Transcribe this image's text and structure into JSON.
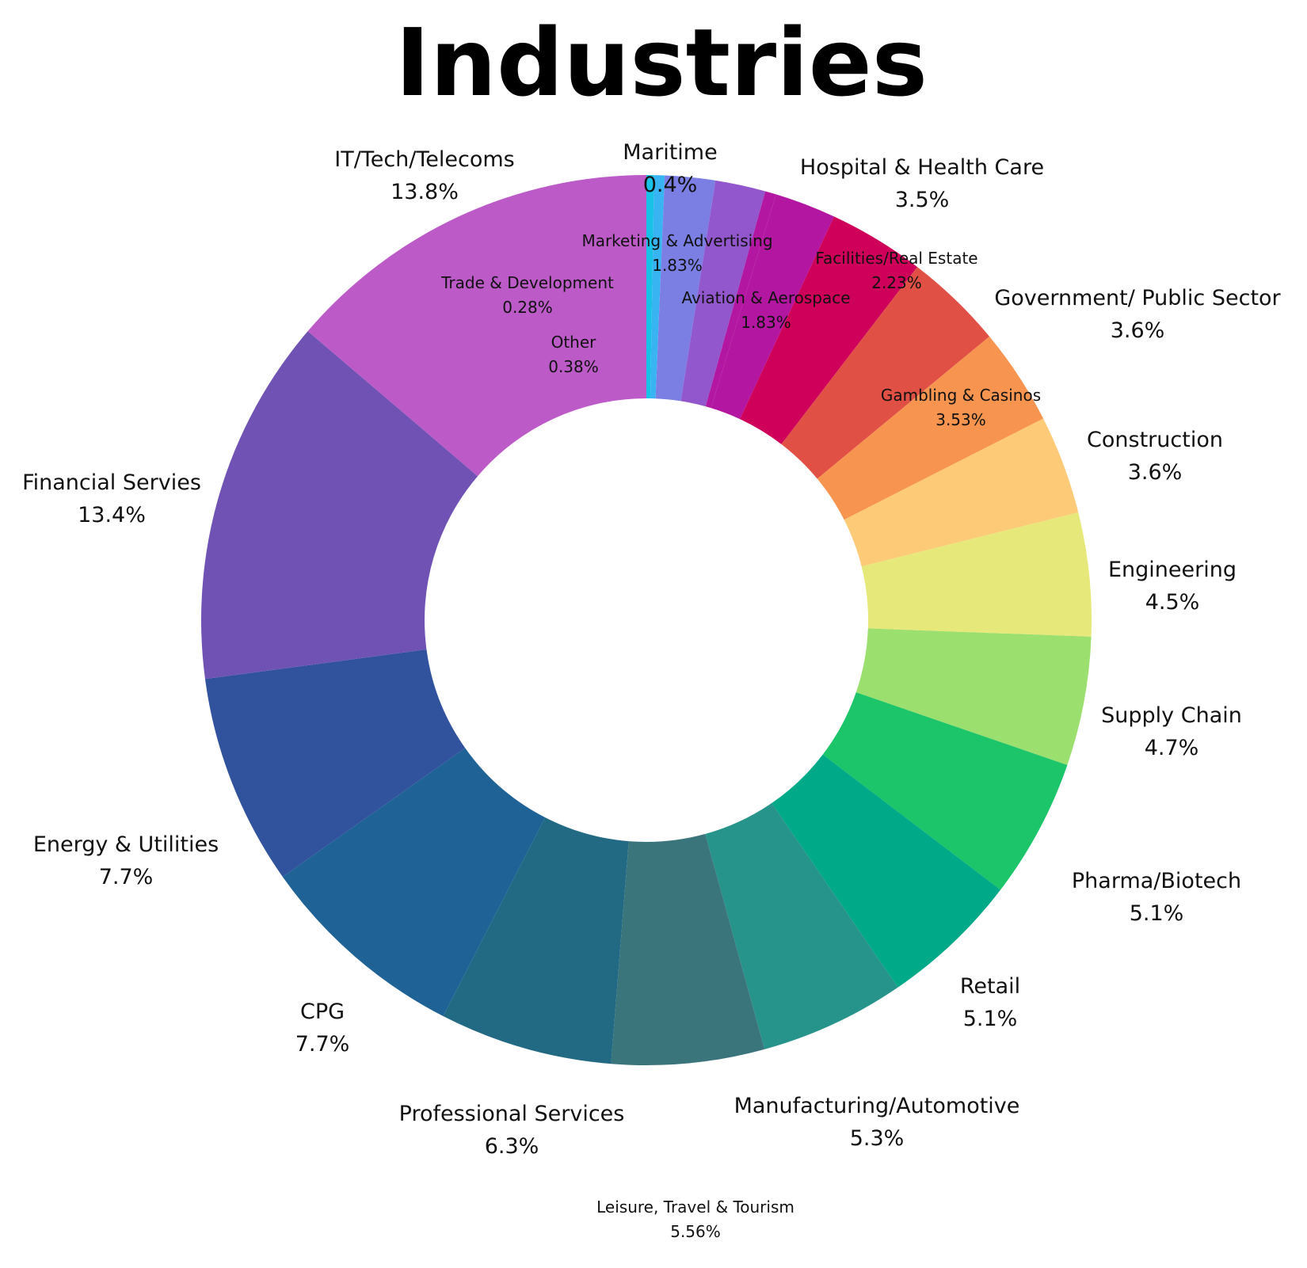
{
  "chart_data": {
    "type": "pie",
    "donut": true,
    "title": "Industries",
    "series": [
      {
        "name": "Trade & Development",
        "value": 0.28,
        "value_label": "0.28%",
        "color": "#18c2e6",
        "label_style": "small"
      },
      {
        "name": "Other",
        "value": 0.38,
        "value_label": "0.38%",
        "color": "#38b4f2",
        "label_style": "small"
      },
      {
        "name": "Marketing & Advertising",
        "value": 1.83,
        "value_label": "1.83%",
        "color": "#7b7fe4",
        "label_style": "small"
      },
      {
        "name": "Aviation & Aerospace",
        "value": 1.83,
        "value_label": "1.83%",
        "color": "#9257cc",
        "label_style": "small"
      },
      {
        "name": "Maritime",
        "value": 0.4,
        "value_label": "0.4%",
        "color": "#b316a0",
        "label_style": "large"
      },
      {
        "name": "Facilities/Real Estate",
        "value": 2.23,
        "value_label": "2.23%",
        "color": "#b316a0",
        "label_style": "small"
      },
      {
        "name": "Hospital & Health Care",
        "value": 3.5,
        "value_label": "3.5%",
        "color": "#cf0059",
        "label_style": "large"
      },
      {
        "name": "Government/ Public Sector",
        "value": 3.6,
        "value_label": "3.6%",
        "color": "#e05045",
        "label_style": "large"
      },
      {
        "name": "Gambling & Casinos",
        "value": 3.53,
        "value_label": "3.53%",
        "color": "#f79450",
        "label_style": "small"
      },
      {
        "name": "Construction",
        "value": 3.6,
        "value_label": "3.6%",
        "color": "#fdca78",
        "label_style": "large"
      },
      {
        "name": "Engineering",
        "value": 4.5,
        "value_label": "4.5%",
        "color": "#e6e87a",
        "label_style": "large"
      },
      {
        "name": "Supply Chain",
        "value": 4.7,
        "value_label": "4.7%",
        "color": "#9bdf6f",
        "label_style": "large"
      },
      {
        "name": "Pharma/Biotech",
        "value": 5.1,
        "value_label": "5.1%",
        "color": "#1cc46a",
        "label_style": "large"
      },
      {
        "name": "Retail",
        "value": 5.1,
        "value_label": "5.1%",
        "color": "#00a987",
        "label_style": "large"
      },
      {
        "name": "Manufacturing/Automotive",
        "value": 5.3,
        "value_label": "5.3%",
        "color": "#26948b",
        "label_style": "large"
      },
      {
        "name": "Leisure, Travel & Tourism",
        "value": 5.56,
        "value_label": "5.56%",
        "color": "#3b757c",
        "label_style": "small"
      },
      {
        "name": "Professional Services",
        "value": 6.3,
        "value_label": "6.3%",
        "color": "#226a84",
        "label_style": "large"
      },
      {
        "name": "CPG",
        "value": 7.7,
        "value_label": "7.7%",
        "color": "#1f6396",
        "label_style": "large"
      },
      {
        "name": "Energy & Utilities",
        "value": 7.7,
        "value_label": "7.7%",
        "color": "#31529d",
        "label_style": "large"
      },
      {
        "name": "Financial Servies",
        "value": 13.4,
        "value_label": "13.4%",
        "color": "#6f52b4",
        "label_style": "large"
      },
      {
        "name": "IT/Tech/Telecoms",
        "value": 13.8,
        "value_label": "13.8%",
        "color": "#bc5bc8",
        "label_style": "large"
      }
    ],
    "legend": "none",
    "labels": "outside and inside slices"
  }
}
